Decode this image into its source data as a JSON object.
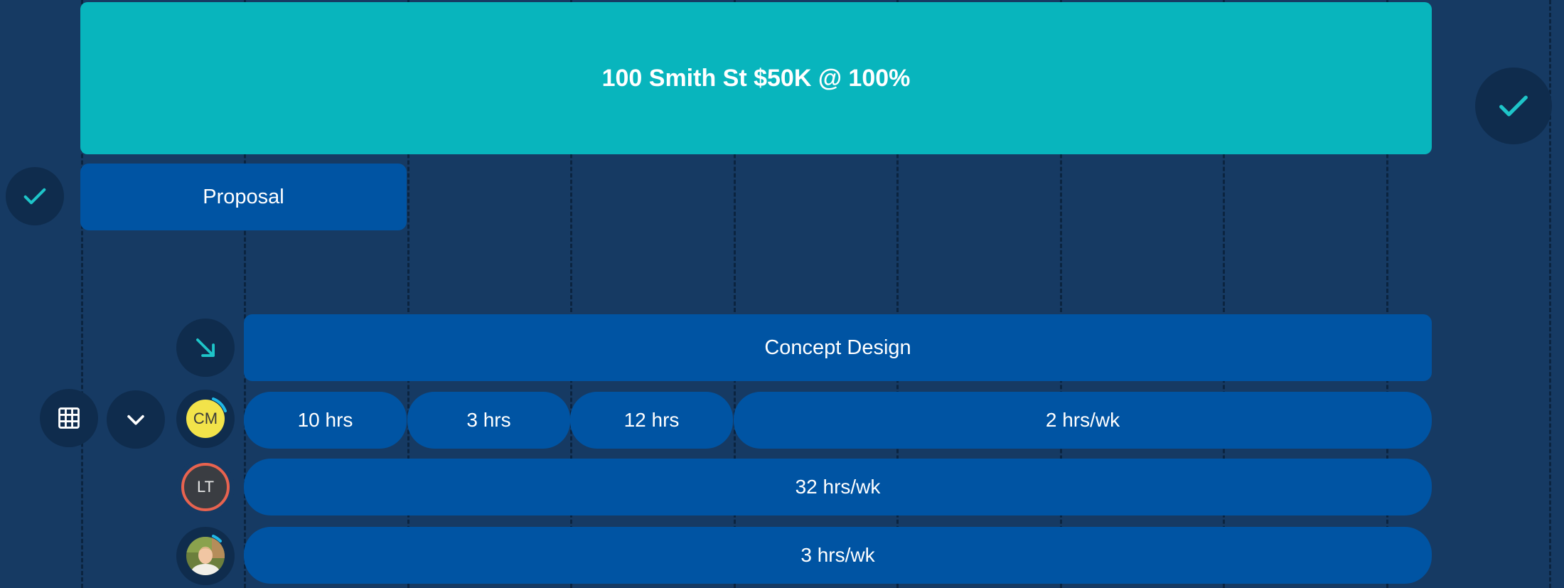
{
  "project": {
    "label": "100 Smith St $50K @ 100%"
  },
  "phases": {
    "proposal": "Proposal",
    "concept_design": "Concept Design"
  },
  "members": [
    {
      "initials": "CM",
      "allocations": [
        "10 hrs",
        "3 hrs",
        "12 hrs",
        "2 hrs/wk"
      ]
    },
    {
      "initials": "LT",
      "allocations": [
        "32 hrs/wk"
      ]
    },
    {
      "initials": "",
      "allocations": [
        "3 hrs/wk"
      ]
    }
  ],
  "colors": {
    "background": "#163a63",
    "project_bar": "#08b5bd",
    "phase_bar": "#0054a3",
    "check_accent": "#1ec5c9",
    "cm_avatar": "#f2e34a",
    "lt_avatar_ring": "#e8634f"
  }
}
